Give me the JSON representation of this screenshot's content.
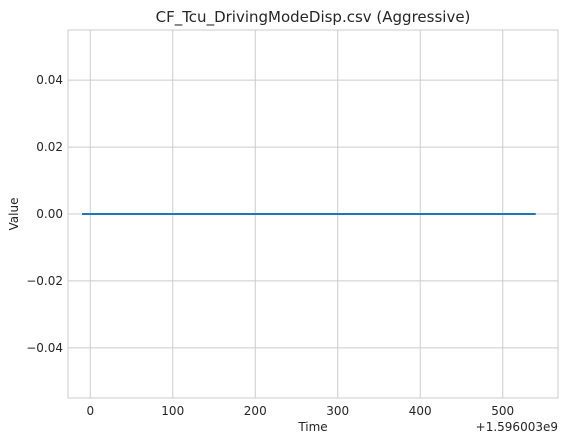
{
  "chart_data": {
    "type": "line",
    "title": "CF_Tcu_DrivingModeDisp.csv (Aggressive)",
    "xlabel": "Time",
    "ylabel": "Value",
    "x_offset_label": "+1.596003e9",
    "xlim": [
      -27,
      567
    ],
    "ylim": [
      -0.055,
      0.055
    ],
    "x_ticks": [
      0,
      100,
      200,
      300,
      400,
      500
    ],
    "y_ticks": [
      -0.04,
      -0.02,
      0.0,
      0.02,
      0.04
    ],
    "x_tick_labels": [
      "0",
      "100",
      "200",
      "300",
      "400",
      "500"
    ],
    "y_tick_labels": [
      "−0.04",
      "−0.02",
      "0.00",
      "0.02",
      "0.04"
    ],
    "grid": true,
    "series": [
      {
        "x": [
          -10,
          540
        ],
        "y": [
          0,
          0
        ],
        "color": "#1f77b4"
      }
    ]
  }
}
